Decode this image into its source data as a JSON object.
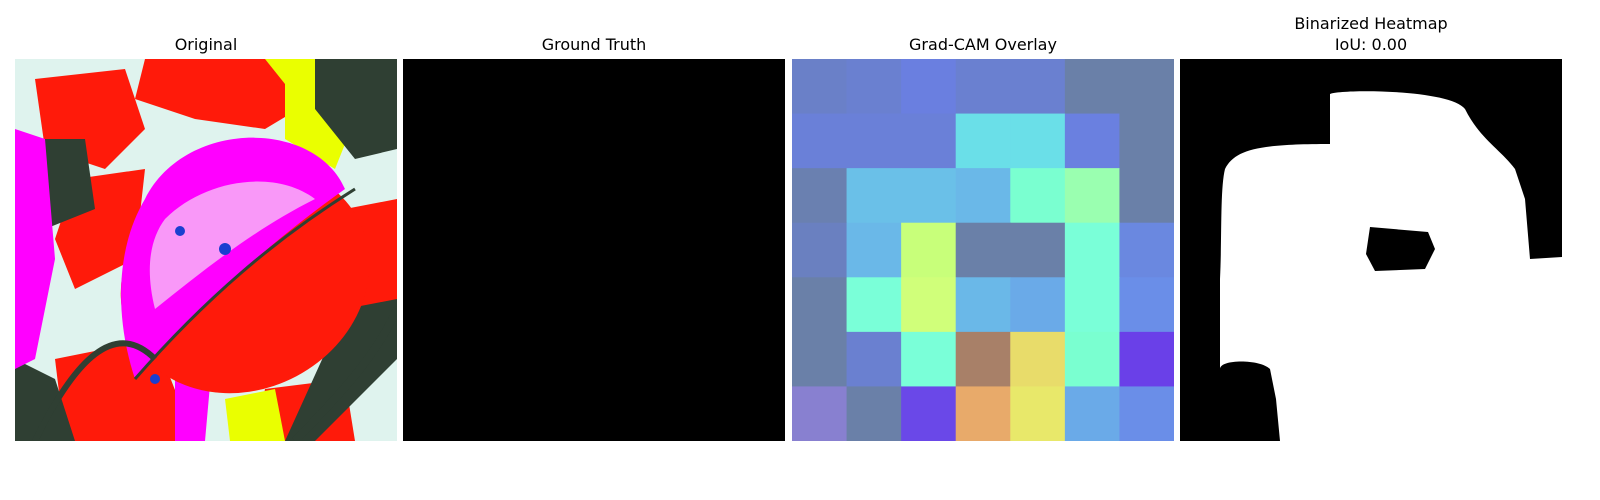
{
  "panels": [
    {
      "title": "Original"
    },
    {
      "title": "Ground Truth"
    },
    {
      "title": "Grad-CAM Overlay"
    },
    {
      "title_line1": "Binarized Heatmap",
      "title_line2": "IoU: 0.00"
    }
  ],
  "gradcam": {
    "rows": 7,
    "cols": 7,
    "cells": [
      [
        "#6a80c8",
        "#6a80d0",
        "#6a7fe0",
        "#6a80d0",
        "#6a80d0",
        "#6a80a8",
        "#6a80a8"
      ],
      [
        "#6a80d8",
        "#6a80d8",
        "#6a80d8",
        "#6adfe8",
        "#6adfe8",
        "#6a80e0",
        "#6a80a8"
      ],
      [
        "#6a80b0",
        "#6ac0e8",
        "#6ac0e8",
        "#6ab8e8",
        "#7affd0",
        "#9affb0",
        "#6a80a8"
      ],
      [
        "#6a80c0",
        "#6ab8e8",
        "#c8ff7a",
        "#6a80a8",
        "#6a80a8",
        "#7affd8",
        "#6a88e0"
      ],
      [
        "#6a80a8",
        "#7affd8",
        "#d0ff7a",
        "#6ab8e8",
        "#6aaae8",
        "#7affd8",
        "#6a8ee8"
      ],
      [
        "#6a80a8",
        "#6a80d0",
        "#7affd8",
        "#a88068",
        "#e8dc6a",
        "#7affd0",
        "#6a40e8"
      ],
      [
        "#8880d0",
        "#6a80a8",
        "#6a48e8",
        "#e8aa6a",
        "#e8e86a",
        "#6aaae8",
        "#6a8ee8"
      ]
    ]
  },
  "colors": {
    "background": "#ffffff",
    "mask_black": "#000000",
    "mask_white": "#ffffff",
    "leaf_magenta": "#ff00ff",
    "leaf_red": "#ff1a0a",
    "bg_pale": "#dff3ee",
    "dark_green": "#2f3f33",
    "yellow": "#eaff00"
  }
}
